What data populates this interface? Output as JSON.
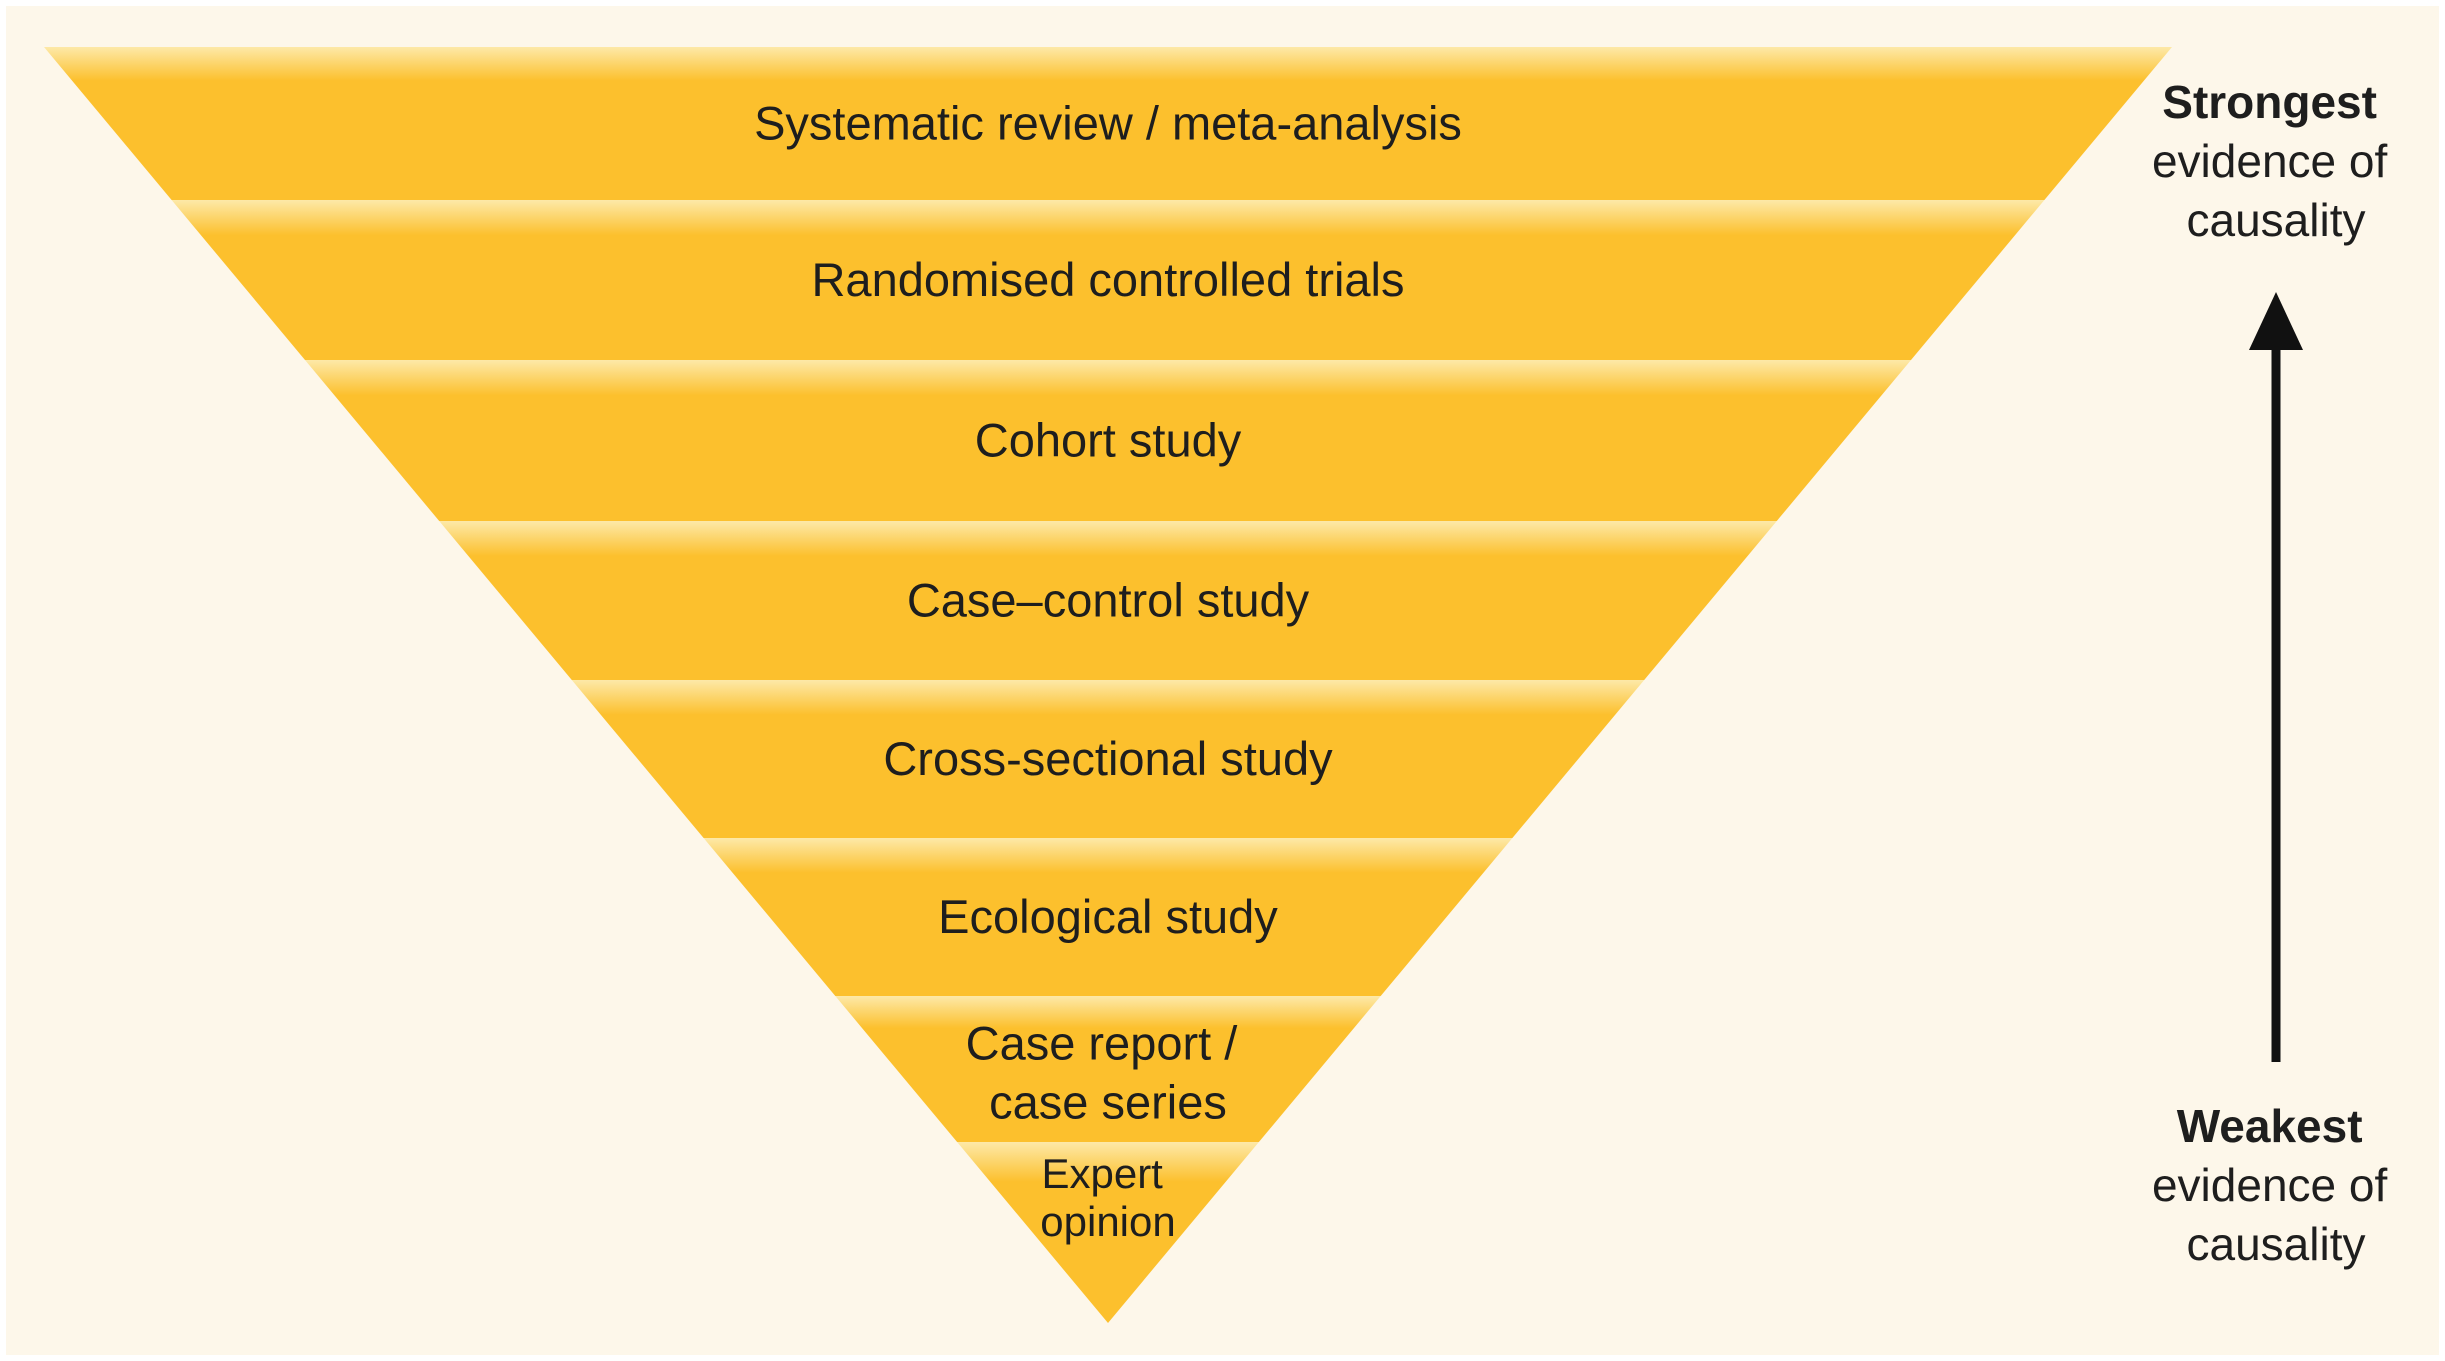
{
  "pyramid": {
    "tiers": [
      {
        "lines": [
          "Systematic review / meta-analysis"
        ]
      },
      {
        "lines": [
          "Randomised controlled trials"
        ]
      },
      {
        "lines": [
          "Cohort study"
        ]
      },
      {
        "lines": [
          "Case–control study"
        ]
      },
      {
        "lines": [
          "Cross-sectional study"
        ]
      },
      {
        "lines": [
          "Ecological study"
        ]
      },
      {
        "lines": [
          "Case report /",
          "case series"
        ]
      },
      {
        "lines": [
          "Expert",
          "opinion"
        ]
      }
    ],
    "colors": {
      "fill": "#fcc02d",
      "highlight": "#fde9a8",
      "background": "#fdf7ea"
    }
  },
  "scale": {
    "top": {
      "bold": "Strongest",
      "lines": [
        "evidence of",
        "causality"
      ]
    },
    "bottom": {
      "bold": "Weakest",
      "lines": [
        "evidence of",
        "causality"
      ]
    },
    "arrow_color": "#111111"
  }
}
